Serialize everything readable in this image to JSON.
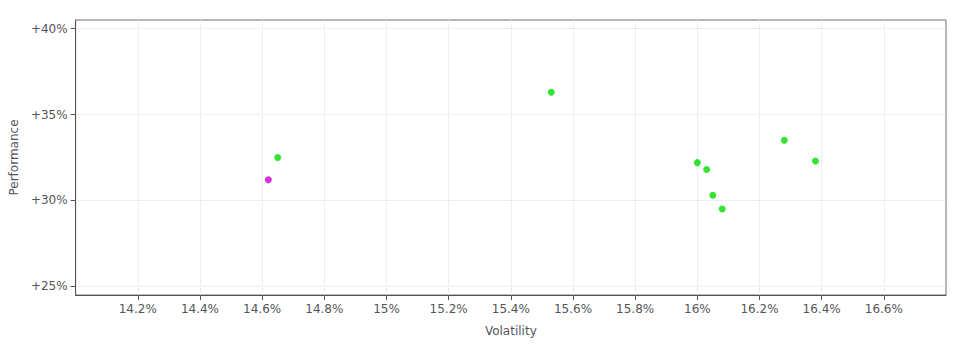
{
  "chart_data": {
    "type": "scatter",
    "xlabel": "Volatility",
    "ylabel": "Performance",
    "xlim": [
      0.14,
      0.168
    ],
    "ylim": [
      0.245,
      0.405
    ],
    "xticks": [
      {
        "value": 0.142,
        "label": "14.2%"
      },
      {
        "value": 0.144,
        "label": "14.4%"
      },
      {
        "value": 0.146,
        "label": "14.6%"
      },
      {
        "value": 0.148,
        "label": "14.8%"
      },
      {
        "value": 0.15,
        "label": "15%"
      },
      {
        "value": 0.152,
        "label": "15.2%"
      },
      {
        "value": 0.154,
        "label": "15.4%"
      },
      {
        "value": 0.156,
        "label": "15.6%"
      },
      {
        "value": 0.158,
        "label": "15.8%"
      },
      {
        "value": 0.16,
        "label": "16%"
      },
      {
        "value": 0.162,
        "label": "16.2%"
      },
      {
        "value": 0.164,
        "label": "16.4%"
      },
      {
        "value": 0.166,
        "label": "16.6%"
      }
    ],
    "yticks": [
      {
        "value": 0.25,
        "label": "+25%"
      },
      {
        "value": 0.3,
        "label": "+30%"
      },
      {
        "value": 0.35,
        "label": "+35%"
      },
      {
        "value": 0.4,
        "label": "+40%"
      }
    ],
    "grid": true,
    "series": [
      {
        "color": "#00dd00",
        "x": [
          0.1465,
          0.1553,
          0.16,
          0.1603,
          0.1605,
          0.1608,
          0.1628,
          0.1638
        ],
        "values": [
          0.325,
          0.363,
          0.322,
          0.318,
          0.303,
          0.295,
          0.335,
          0.323
        ]
      },
      {
        "color": "#cc00cc",
        "x": [
          0.1462
        ],
        "values": [
          0.312
        ]
      }
    ]
  }
}
